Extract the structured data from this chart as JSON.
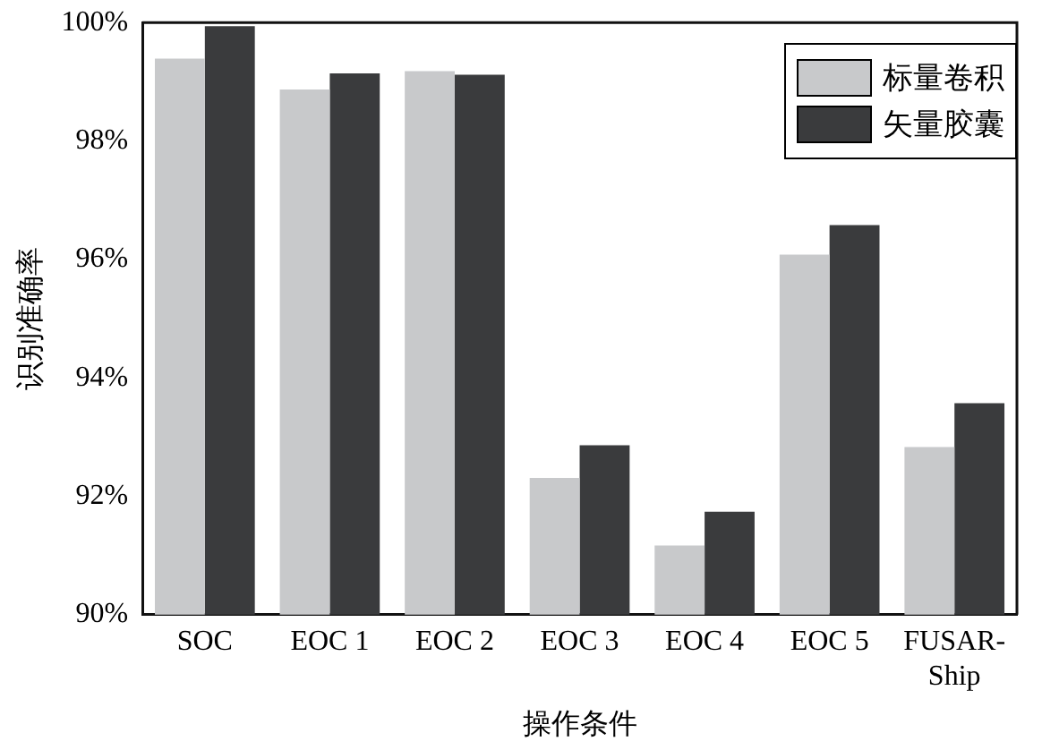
{
  "chart_data": {
    "type": "bar",
    "xlabel": "操作条件",
    "ylabel": "识别准确率",
    "categories": [
      "SOC",
      "EOC 1",
      "EOC 2",
      "EOC 3",
      "EOC 4",
      "EOC 5",
      "FUSAR-Ship"
    ],
    "series": [
      {
        "name": "标量卷积",
        "color": "#c8c9cb",
        "values": [
          99.39,
          98.87,
          99.18,
          92.31,
          91.17,
          96.08,
          92.83
        ]
      },
      {
        "name": "矢量胶囊",
        "color": "#3a3b3d",
        "values": [
          99.94,
          99.14,
          99.12,
          92.86,
          91.74,
          96.58,
          93.57
        ]
      }
    ],
    "ylim": [
      90,
      100
    ],
    "yticks": [
      {
        "value": 90,
        "label": "90%"
      },
      {
        "value": 92,
        "label": "92%"
      },
      {
        "value": 94,
        "label": "94%"
      },
      {
        "value": 96,
        "label": "96%"
      },
      {
        "value": 98,
        "label": "98%"
      },
      {
        "value": 100,
        "label": "100%"
      }
    ],
    "grid": false,
    "legend": "top right"
  }
}
